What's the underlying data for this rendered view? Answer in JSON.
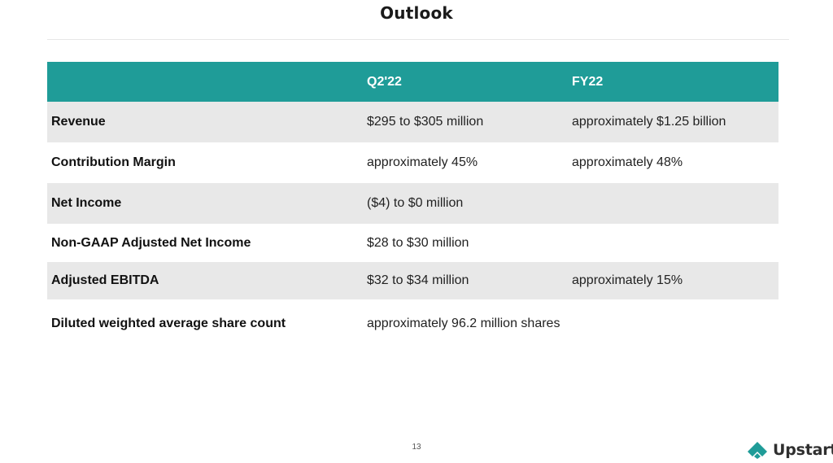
{
  "slide": {
    "title": "Outlook",
    "page_number": "13"
  },
  "table": {
    "columns": [
      "",
      "Q2'22",
      "FY22"
    ],
    "rows": [
      {
        "metric": "Revenue",
        "q2": "$295 to $305 million",
        "fy": "approximately $1.25 billion"
      },
      {
        "metric": "Contribution Margin",
        "q2": "approximately 45%",
        "fy": "approximately 48%"
      },
      {
        "metric": "Net Income",
        "q2": "($4) to $0 million",
        "fy": ""
      },
      {
        "metric": "Non-GAAP Adjusted Net Income",
        "q2": "$28 to $30 million",
        "fy": ""
      },
      {
        "metric": "Adjusted EBITDA",
        "q2": "$32 to $34 million",
        "fy": "approximately 15%"
      },
      {
        "metric": "Diluted weighted average share count",
        "q2": "approximately 96.2 million shares",
        "fy": ""
      }
    ]
  },
  "brand": {
    "name": "Upstart",
    "icon": "upstart-logo-icon"
  },
  "colors": {
    "header_teal": "#1f9c98",
    "row_shade": "#e8e8e8",
    "logo_teal": "#1f9c98"
  }
}
